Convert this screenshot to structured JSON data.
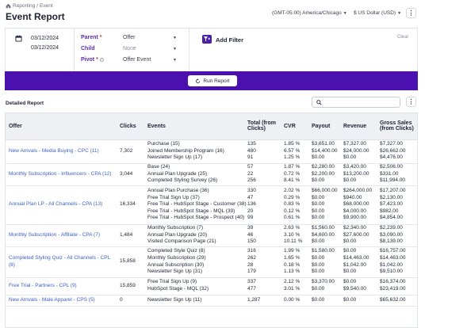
{
  "header": {
    "breadcrumb_root": "Reporting",
    "breadcrumb_sep": "/",
    "breadcrumb_current": "Event",
    "title": "Event Report",
    "timezone": "(GMT-05:00) America/Chicago",
    "currency": "$ US Dollar (USD)",
    "icons": {
      "home": "home-icon",
      "more": "more-vertical-icon"
    }
  },
  "filters": {
    "date_start": "03/12/2024",
    "date_end": "03/12/2024",
    "parent_label": "Parent",
    "parent_required": "*",
    "parent_value": "Offer",
    "child_label": "Child",
    "child_value": "None",
    "pivot_label": "Pivot",
    "pivot_required": "*",
    "pivot_value": "Offer Event",
    "add_filter_label": "Add Filter",
    "clear_label": "Clear",
    "icons": {
      "calendar": "calendar-icon",
      "add_filter": "filter-plus-icon",
      "caret": "caret-down-icon"
    }
  },
  "run": {
    "label": "Run Report",
    "icon": "refresh-icon",
    "bar_color": "#4b10b0"
  },
  "report": {
    "section_label": "Detailed Report",
    "search_placeholder": "",
    "columns": [
      "Offer",
      "Clicks",
      "Events",
      "Total (from Clicks)",
      "CVR",
      "Payout",
      "Revenue",
      "Gross Sales (from Clicks)"
    ],
    "rows": [
      {
        "offer": "New Arrivals - Media Buying - CPC (11)",
        "clicks": "7,302",
        "events": [
          [
            "Purchase (15)",
            "135",
            "1.85 %",
            "$3,651.00",
            "$7,327.00",
            "$7,327.00"
          ],
          [
            "Joined Membership Program (16)",
            "480",
            "6.57 %",
            "$14,400.00",
            "$24,000.00",
            "$26,662.00"
          ],
          [
            "Newsletter Sign Up (17)",
            "91",
            "1.25 %",
            "$0.00",
            "$0.00",
            "$4,476.00"
          ]
        ]
      },
      {
        "offer": "Monthly Subscription - Influencers - CPA (12)",
        "clicks": "3,044",
        "events": [
          [
            "Base (24)",
            "57",
            "1.87 %",
            "$2,280.00",
            "$3,420.00",
            "$2,506.00"
          ],
          [
            "Annual Plan Upgrade (25)",
            "22",
            "0.72 %",
            "$2,200.00",
            "$13,200.00",
            "$331.00"
          ],
          [
            "Completed Styling Survey (26)",
            "256",
            "8.41 %",
            "$0.00",
            "$0.00",
            "$11,994.00"
          ]
        ]
      },
      {
        "offer": "Annual Plan LP - All Channels - CPA (13)",
        "clicks": "16,334",
        "events": [
          [
            "Annual Plan Purchase (36)",
            "330",
            "2.02 %",
            "$66,000.00",
            "$264,000.00",
            "$17,207.00"
          ],
          [
            "Free Trial Sign Up (37)",
            "47",
            "0.29 %",
            "$0.00",
            "$940.00",
            "$2,130.00"
          ],
          [
            "Free Trial - HubSpot Stage - Customer (38)",
            "136",
            "0.83 %",
            "$0.00",
            "$68,000.00",
            "$7,423.00"
          ],
          [
            "Free Trial - HubSpot Stage - MQL (39)",
            "20",
            "0.12 %",
            "$0.00",
            "$4,000.00",
            "$982.00"
          ],
          [
            "Free Trial - HubSpot Stage - Prospect (40)",
            "99",
            "0.61 %",
            "$0.00",
            "$9,900.00",
            "$4,854.00"
          ]
        ]
      },
      {
        "offer": "Monthly Subscription - Affiliate - CPA (7)",
        "clicks": "1,484",
        "events": [
          [
            "Monthly Subscription (7)",
            "39",
            "2.63 %",
            "$1,560.00",
            "$2,340.00",
            "$2,239.00"
          ],
          [
            "Annual Plan Upgrade (20)",
            "46",
            "3.10 %",
            "$4,600.00",
            "$27,600.00",
            "$3,090.00"
          ],
          [
            "Visited Comparison Page (21)",
            "150",
            "10.11 %",
            "$0.00",
            "$0.00",
            "$8,139.00"
          ]
        ]
      },
      {
        "offer": "Completed Styling Quiz - All Channels - CPL (8)",
        "clicks": "15,858",
        "events": [
          [
            "Completed Style Quiz (8)",
            "316",
            "1.99 %",
            "$1,580.00",
            "$0.00",
            "$16,757.00"
          ],
          [
            "Monthly Subscription (29)",
            "262",
            "1.65 %",
            "$0.00",
            "$14,463.00",
            "$14,463.00"
          ],
          [
            "Annual Subscription (30)",
            "28",
            "0.18 %",
            "$0.00",
            "$1,042.00",
            "$1,042.00"
          ],
          [
            "Newsletter Sign Up (31)",
            "179",
            "1.13 %",
            "$0.00",
            "$0.00",
            "$9,510.00"
          ]
        ]
      },
      {
        "offer": "Free Trial - Partners - CPL (9)",
        "clicks": "15,859",
        "events": [
          [
            "Free Trial Sign Up (9)",
            "337",
            "2.12 %",
            "$3,370.00",
            "$0.00",
            "$16,374.00"
          ],
          [
            "HubSpot Stage - MQL (32)",
            "477",
            "3.01 %",
            "$0.00",
            "$9,540.00",
            "$23,419.00"
          ]
        ]
      },
      {
        "offer": "New Arrivals - Male Apparel - CPS (5)",
        "clicks": "0",
        "events": [
          [
            "Newsletter Sign Up (11)",
            "1,287",
            "0.00 %",
            "$0.00",
            "$0.00",
            "$65,632.00"
          ]
        ]
      }
    ]
  },
  "colors": {
    "accent": "#4b10b0",
    "link": "#3b5fc9",
    "label": "#5a2ab8"
  }
}
